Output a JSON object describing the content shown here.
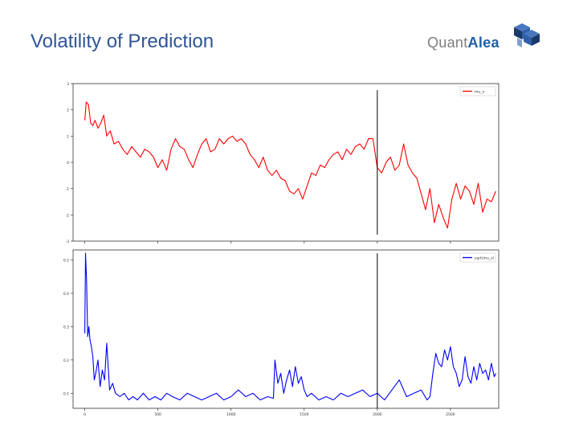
{
  "slide": {
    "title": "Volatility of Prediction"
  },
  "logo": {
    "text_plain": "Quant",
    "text_accent": "Alea",
    "icon": "cube-stack-icon",
    "colors": {
      "gray": "#7f7f7f",
      "blue": "#1f5fa8",
      "dark": "#1b3a6b"
    }
  },
  "chart_data": [
    {
      "type": "line",
      "title": "",
      "xlabel": "",
      "ylabel": "",
      "xlim": [
        -80,
        2830
      ],
      "ylim": [
        -3,
        3
      ],
      "yticks": [
        3,
        2,
        1,
        0,
        -1,
        -2,
        -3
      ],
      "xticks": [
        0,
        500,
        1000,
        1500,
        2000,
        2500
      ],
      "show_x_tick_labels": false,
      "vline_x": 2000,
      "vline_y_range": [
        -2.75,
        2.75
      ],
      "legend_position": "top-right",
      "series": [
        {
          "name": "mu_x",
          "color": "#ff0000",
          "x": [
            0,
            10,
            25,
            40,
            55,
            70,
            90,
            110,
            130,
            150,
            175,
            200,
            230,
            260,
            290,
            320,
            350,
            380,
            410,
            440,
            470,
            500,
            530,
            560,
            590,
            620,
            650,
            680,
            710,
            740,
            770,
            800,
            830,
            860,
            890,
            920,
            950,
            980,
            1010,
            1040,
            1070,
            1100,
            1130,
            1160,
            1190,
            1220,
            1250,
            1280,
            1310,
            1340,
            1370,
            1400,
            1430,
            1460,
            1490,
            1520,
            1550,
            1580,
            1610,
            1640,
            1670,
            1700,
            1730,
            1760,
            1790,
            1820,
            1850,
            1880,
            1910,
            1940,
            1970,
            2000,
            2030,
            2060,
            2090,
            2120,
            2150,
            2180,
            2210,
            2240,
            2270,
            2300,
            2330,
            2360,
            2390,
            2420,
            2450,
            2480,
            2510,
            2540,
            2570,
            2600,
            2630,
            2660,
            2690,
            2720,
            2750,
            2780,
            2810
          ],
          "values": [
            1.6,
            2.3,
            2.2,
            1.5,
            1.4,
            1.6,
            1.3,
            1.5,
            1.8,
            1.0,
            1.2,
            0.7,
            0.8,
            0.5,
            0.3,
            0.6,
            0.4,
            0.2,
            0.5,
            0.4,
            0.2,
            -0.2,
            0.1,
            -0.3,
            0.5,
            0.9,
            0.6,
            0.5,
            0.1,
            -0.2,
            0.3,
            0.7,
            0.9,
            0.4,
            0.5,
            0.9,
            0.7,
            0.9,
            1.0,
            0.8,
            0.9,
            0.7,
            0.3,
            0.1,
            -0.2,
            0.2,
            -0.3,
            -0.5,
            -0.3,
            -0.6,
            -0.7,
            -1.1,
            -1.2,
            -1.0,
            -1.4,
            -0.9,
            -0.4,
            -0.5,
            -0.1,
            -0.2,
            0.1,
            0.3,
            0.4,
            0.1,
            0.5,
            0.3,
            0.6,
            0.7,
            0.5,
            0.9,
            0.9,
            -0.2,
            -0.4,
            0.0,
            0.2,
            -0.3,
            -0.1,
            0.7,
            -0.1,
            -0.4,
            -0.6,
            -1.2,
            -1.8,
            -1.0,
            -2.3,
            -1.6,
            -2.1,
            -2.5,
            -1.4,
            -0.8,
            -1.4,
            -0.9,
            -1.1,
            -1.6,
            -0.8,
            -1.9,
            -1.4,
            -1.5,
            -1.1
          ]
        }
      ]
    },
    {
      "type": "line",
      "title": "",
      "xlabel": "",
      "ylabel": "",
      "xlim": [
        -80,
        2830
      ],
      "ylim": [
        0.055,
        0.53
      ],
      "yticks": [
        0.5,
        0.4,
        0.3,
        0.2,
        0.1
      ],
      "xticks": [
        0,
        500,
        1000,
        1500,
        2000,
        2500
      ],
      "vline_x": 2000,
      "vline_y_range": [
        0.055,
        0.52
      ],
      "legend_position": "top-right",
      "series": [
        {
          "name": "sqrt(mu_x)",
          "color": "#0000ff",
          "x": [
            0,
            5,
            12,
            20,
            28,
            36,
            45,
            55,
            65,
            75,
            90,
            105,
            120,
            135,
            150,
            170,
            190,
            210,
            240,
            270,
            300,
            330,
            360,
            400,
            440,
            480,
            520,
            560,
            600,
            650,
            700,
            750,
            800,
            850,
            900,
            950,
            1000,
            1050,
            1100,
            1150,
            1200,
            1250,
            1290,
            1300,
            1320,
            1340,
            1360,
            1380,
            1400,
            1420,
            1440,
            1460,
            1480,
            1500,
            1520,
            1550,
            1600,
            1650,
            1700,
            1750,
            1800,
            1850,
            1900,
            1950,
            2000,
            2050,
            2100,
            2150,
            2200,
            2250,
            2300,
            2340,
            2360,
            2380,
            2400,
            2420,
            2440,
            2460,
            2480,
            2500,
            2520,
            2540,
            2560,
            2580,
            2600,
            2620,
            2640,
            2660,
            2680,
            2700,
            2720,
            2740,
            2760,
            2780,
            2800,
            2810
          ],
          "values": [
            0.28,
            0.52,
            0.44,
            0.27,
            0.3,
            0.26,
            0.24,
            0.21,
            0.14,
            0.16,
            0.2,
            0.12,
            0.17,
            0.14,
            0.25,
            0.11,
            0.13,
            0.1,
            0.09,
            0.1,
            0.08,
            0.09,
            0.08,
            0.1,
            0.08,
            0.09,
            0.08,
            0.1,
            0.09,
            0.08,
            0.1,
            0.09,
            0.08,
            0.09,
            0.1,
            0.08,
            0.09,
            0.11,
            0.09,
            0.1,
            0.08,
            0.09,
            0.085,
            0.2,
            0.13,
            0.16,
            0.1,
            0.14,
            0.17,
            0.12,
            0.18,
            0.13,
            0.15,
            0.11,
            0.09,
            0.1,
            0.08,
            0.09,
            0.08,
            0.1,
            0.09,
            0.1,
            0.11,
            0.09,
            0.1,
            0.08,
            0.11,
            0.14,
            0.09,
            0.1,
            0.11,
            0.08,
            0.09,
            0.16,
            0.22,
            0.19,
            0.18,
            0.23,
            0.2,
            0.24,
            0.18,
            0.16,
            0.12,
            0.14,
            0.21,
            0.15,
            0.13,
            0.18,
            0.14,
            0.19,
            0.16,
            0.17,
            0.14,
            0.19,
            0.15,
            0.16
          ]
        }
      ]
    }
  ]
}
